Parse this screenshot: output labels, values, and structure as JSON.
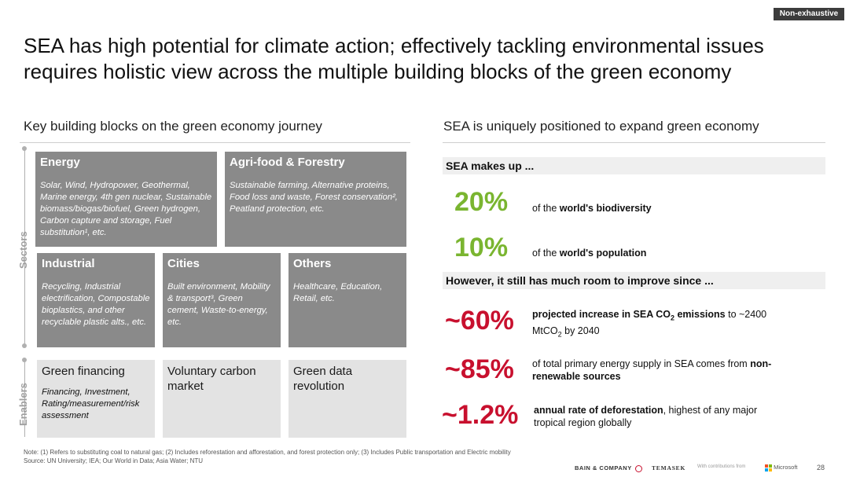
{
  "badge": "Non-exhaustive",
  "title": "SEA has high potential for climate action; effectively tackling environmental issues requires holistic view across the multiple building blocks of the green economy",
  "left": {
    "heading": "Key building blocks on the green economy journey",
    "axis_sectors": "Sectors",
    "axis_enablers": "Enablers",
    "sectors": [
      {
        "title": "Energy",
        "body": "Solar, Wind, Hydropower, Geothermal, Marine energy, 4th gen nuclear, Sustainable biomass/biogas/biofuel, Green hydrogen, Carbon capture and storage, Fuel substitution¹, etc."
      },
      {
        "title": "Agri-food & Forestry",
        "body": "Sustainable farming, Alternative proteins, Food loss and waste, Forest conservation², Peatland protection, etc."
      },
      {
        "title": "Industrial",
        "body": "Recycling, Industrial electrification, Compostable bioplastics, and other recyclable plastic alts., etc."
      },
      {
        "title": "Cities",
        "body": "Built environment, Mobility & transport³, Green cement, Waste-to-energy, etc."
      },
      {
        "title": "Others",
        "body": "Healthcare, Education, Retail, etc."
      }
    ],
    "enablers": [
      {
        "title": "Green financing",
        "body": "Financing, Investment, Rating/measurement/risk assessment"
      },
      {
        "title": "Voluntary carbon market",
        "body": ""
      },
      {
        "title": "Green data revolution",
        "body": ""
      }
    ]
  },
  "right": {
    "heading": "SEA is uniquely positioned to expand green economy",
    "bar1": "SEA makes up ...",
    "stat1": {
      "value": "20%",
      "pre": "of the ",
      "bold": "world's biodiversity"
    },
    "stat2": {
      "value": "10%",
      "pre": "of the ",
      "bold": "world's population"
    },
    "bar2": "However, it still has much room to improve since ...",
    "stat3": {
      "value": "~60%",
      "bold": "projected increase in SEA CO",
      "sub": "2",
      "bold2": " emissions",
      "rest": " to ~2400 MtCO",
      "sub2": "2",
      "rest2": " by 2040"
    },
    "stat4": {
      "value": "~85%",
      "pre": "of total primary energy supply in SEA comes from ",
      "bold": "non-renewable sources"
    },
    "stat5": {
      "value": "~1.2%",
      "bold": "annual rate of deforestation",
      "rest": ", highest of any major tropical region globally"
    }
  },
  "note": "Note: (1) Refers to substituting coal to natural gas; (2) Includes reforestation and afforestation, and forest protection only; (3) Includes Public transportation and Electric mobility",
  "source": "Source: UN University; IEA; Our World in Data; Asia Water; NTU",
  "footer": {
    "bain": "BAIN & COMPANY",
    "temasek": "TEMASEK",
    "contrib": "With contributions from",
    "microsoft": "Microsoft",
    "page": "28"
  },
  "colors": {
    "green": "#7ab530",
    "red": "#c8102e",
    "dark_box": "#8a8a8a",
    "light_box": "#e3e3e3"
  }
}
